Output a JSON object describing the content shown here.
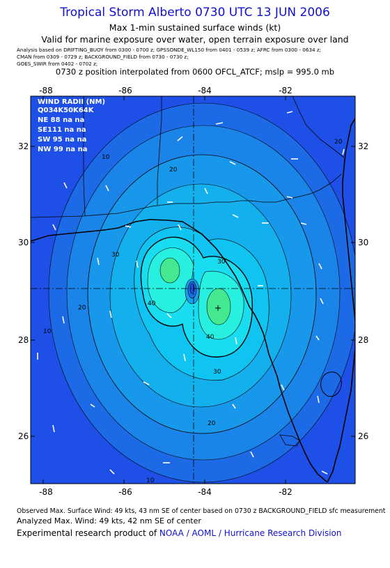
{
  "header": {
    "title": "Tropical Storm Alberto 0730 UTC 13 JUN 2006",
    "subtitle1": "Max 1-min sustained surface winds (kt)",
    "subtitle2": "Valid for marine exposure over water, open terrain exposure over land",
    "analysis_line1": "Analysis based on   DRIFTING_BUOY from 0300 - 0700 z;   GPSSONDE_WL150 from 0401 - 0539 z;   AFRC from 0300 - 0634 z;",
    "analysis_line2": "CMAN from 0309 - 0729 z;   BACKGROUND_FIELD from 0730 - 0730 z;",
    "analysis_line3": "GOES_SWIR from 0402 - 0702 z;",
    "position_line": "0730 z position interpolated from 0600 OFCL_ATCF; mslp = 995.0 mb"
  },
  "map": {
    "lon_ticks": [
      "-88",
      "-86",
      "-84",
      "-82"
    ],
    "lat_ticks": [
      "32",
      "30",
      "28",
      "26"
    ],
    "contour_labels": [
      "10",
      "20",
      "30",
      "40",
      "20",
      "30",
      "40",
      "20",
      "30",
      "10",
      "20",
      "10"
    ],
    "wind_radii": {
      "title": "WIND RADII (NM)",
      "header": "Q034K50K64K",
      "rows": [
        "NE 88  na  na",
        "SE111  na  na",
        "SW 95  na  na",
        "NW 99  na  na"
      ]
    },
    "colors": {
      "ocean_outer": "#1e50e8",
      "level10": "#1c7ae8",
      "level20": "#18a0ec",
      "level30": "#10c8f0",
      "level40": "#20f0e8",
      "core": "#40e890"
    }
  },
  "footer": {
    "observed": "Observed Max. Surface Wind: 49 kts, 43 nm SE of center based on 0730 z BACKGROUND_FIELD sfc measurement",
    "analyzed": "Analyzed Max. Wind: 49 kts, 42 nm SE of center",
    "experimental_prefix": "Experimental research product of ",
    "organization": "NOAA / AOML / Hurricane Research Division"
  }
}
